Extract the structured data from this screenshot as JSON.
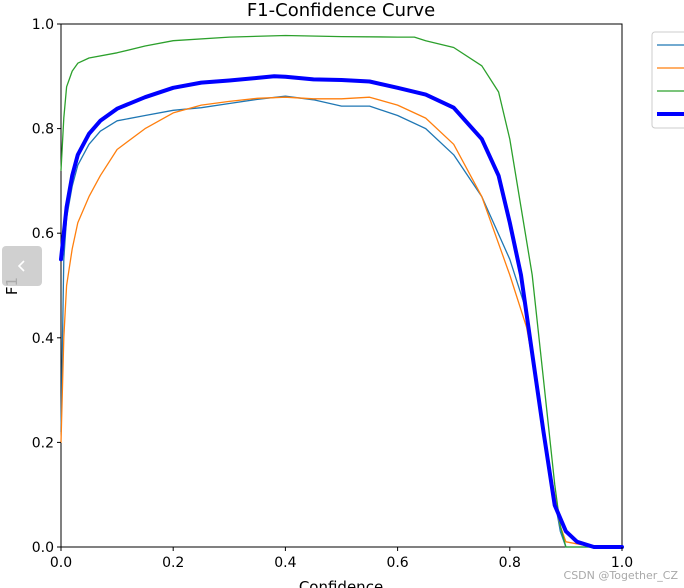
{
  "chart_data": {
    "type": "line",
    "title": "F1-Confidence Curve",
    "xlabel": "Confidence",
    "ylabel": "F1",
    "xlim": [
      0,
      1
    ],
    "ylim": [
      0,
      1
    ],
    "x_ticks": [
      "0.0",
      "0.2",
      "0.4",
      "0.6",
      "0.8",
      "1.0"
    ],
    "y_ticks": [
      "0.0",
      "0.2",
      "0.4",
      "0.6",
      "0.8",
      "1.0"
    ],
    "grid": false,
    "legend_position": "top-right",
    "series": [
      {
        "color": "#1f77b4",
        "line_width": "thin",
        "points": [
          [
            0,
            0.22
          ],
          [
            0.005,
            0.55
          ],
          [
            0.01,
            0.63
          ],
          [
            0.02,
            0.69
          ],
          [
            0.03,
            0.73
          ],
          [
            0.05,
            0.77
          ],
          [
            0.07,
            0.795
          ],
          [
            0.1,
            0.815
          ],
          [
            0.15,
            0.825
          ],
          [
            0.2,
            0.835
          ],
          [
            0.25,
            0.84
          ],
          [
            0.3,
            0.848
          ],
          [
            0.35,
            0.856
          ],
          [
            0.4,
            0.862
          ],
          [
            0.45,
            0.855
          ],
          [
            0.5,
            0.843
          ],
          [
            0.55,
            0.843
          ],
          [
            0.6,
            0.825
          ],
          [
            0.65,
            0.8
          ],
          [
            0.7,
            0.75
          ],
          [
            0.75,
            0.67
          ],
          [
            0.8,
            0.55
          ],
          [
            0.83,
            0.45
          ],
          [
            0.85,
            0.3
          ],
          [
            0.87,
            0.15
          ],
          [
            0.89,
            0.03
          ],
          [
            0.9,
            0
          ],
          [
            0.95,
            0
          ],
          [
            1,
            0
          ]
        ]
      },
      {
        "color": "#ff7f0e",
        "line_width": "thin",
        "points": [
          [
            0,
            0.2
          ],
          [
            0.005,
            0.4
          ],
          [
            0.01,
            0.5
          ],
          [
            0.02,
            0.57
          ],
          [
            0.03,
            0.62
          ],
          [
            0.05,
            0.67
          ],
          [
            0.07,
            0.71
          ],
          [
            0.1,
            0.76
          ],
          [
            0.15,
            0.8
          ],
          [
            0.2,
            0.83
          ],
          [
            0.25,
            0.845
          ],
          [
            0.3,
            0.852
          ],
          [
            0.35,
            0.858
          ],
          [
            0.4,
            0.86
          ],
          [
            0.45,
            0.857
          ],
          [
            0.5,
            0.857
          ],
          [
            0.55,
            0.86
          ],
          [
            0.6,
            0.845
          ],
          [
            0.65,
            0.82
          ],
          [
            0.7,
            0.77
          ],
          [
            0.75,
            0.67
          ],
          [
            0.8,
            0.52
          ],
          [
            0.83,
            0.42
          ],
          [
            0.85,
            0.3
          ],
          [
            0.87,
            0.16
          ],
          [
            0.89,
            0.04
          ],
          [
            0.9,
            0.01
          ],
          [
            0.95,
            0
          ],
          [
            1,
            0
          ]
        ]
      },
      {
        "color": "#2ca02c",
        "line_width": "thin",
        "points": [
          [
            0,
            0.72
          ],
          [
            0.005,
            0.82
          ],
          [
            0.01,
            0.88
          ],
          [
            0.02,
            0.91
          ],
          [
            0.03,
            0.925
          ],
          [
            0.05,
            0.935
          ],
          [
            0.1,
            0.945
          ],
          [
            0.15,
            0.958
          ],
          [
            0.2,
            0.968
          ],
          [
            0.3,
            0.975
          ],
          [
            0.4,
            0.978
          ],
          [
            0.5,
            0.976
          ],
          [
            0.6,
            0.975
          ],
          [
            0.63,
            0.975
          ],
          [
            0.65,
            0.968
          ],
          [
            0.7,
            0.955
          ],
          [
            0.75,
            0.92
          ],
          [
            0.78,
            0.87
          ],
          [
            0.8,
            0.78
          ],
          [
            0.82,
            0.65
          ],
          [
            0.84,
            0.52
          ],
          [
            0.86,
            0.32
          ],
          [
            0.88,
            0.12
          ],
          [
            0.89,
            0.04
          ],
          [
            0.9,
            0
          ],
          [
            0.95,
            0
          ],
          [
            1,
            0
          ]
        ]
      },
      {
        "color": "#0000ff",
        "line_width": "thick",
        "points": [
          [
            0,
            0.55
          ],
          [
            0.005,
            0.6
          ],
          [
            0.01,
            0.65
          ],
          [
            0.02,
            0.71
          ],
          [
            0.03,
            0.75
          ],
          [
            0.05,
            0.79
          ],
          [
            0.07,
            0.815
          ],
          [
            0.1,
            0.838
          ],
          [
            0.15,
            0.86
          ],
          [
            0.2,
            0.878
          ],
          [
            0.25,
            0.888
          ],
          [
            0.3,
            0.892
          ],
          [
            0.35,
            0.897
          ],
          [
            0.38,
            0.9
          ],
          [
            0.4,
            0.899
          ],
          [
            0.45,
            0.894
          ],
          [
            0.5,
            0.893
          ],
          [
            0.55,
            0.89
          ],
          [
            0.6,
            0.878
          ],
          [
            0.65,
            0.865
          ],
          [
            0.7,
            0.84
          ],
          [
            0.75,
            0.78
          ],
          [
            0.78,
            0.71
          ],
          [
            0.8,
            0.62
          ],
          [
            0.82,
            0.52
          ],
          [
            0.84,
            0.37
          ],
          [
            0.86,
            0.22
          ],
          [
            0.88,
            0.08
          ],
          [
            0.9,
            0.03
          ],
          [
            0.92,
            0.01
          ],
          [
            0.95,
            0
          ],
          [
            1,
            0
          ]
        ]
      }
    ]
  },
  "watermark": "CSDN @Together_CZ"
}
